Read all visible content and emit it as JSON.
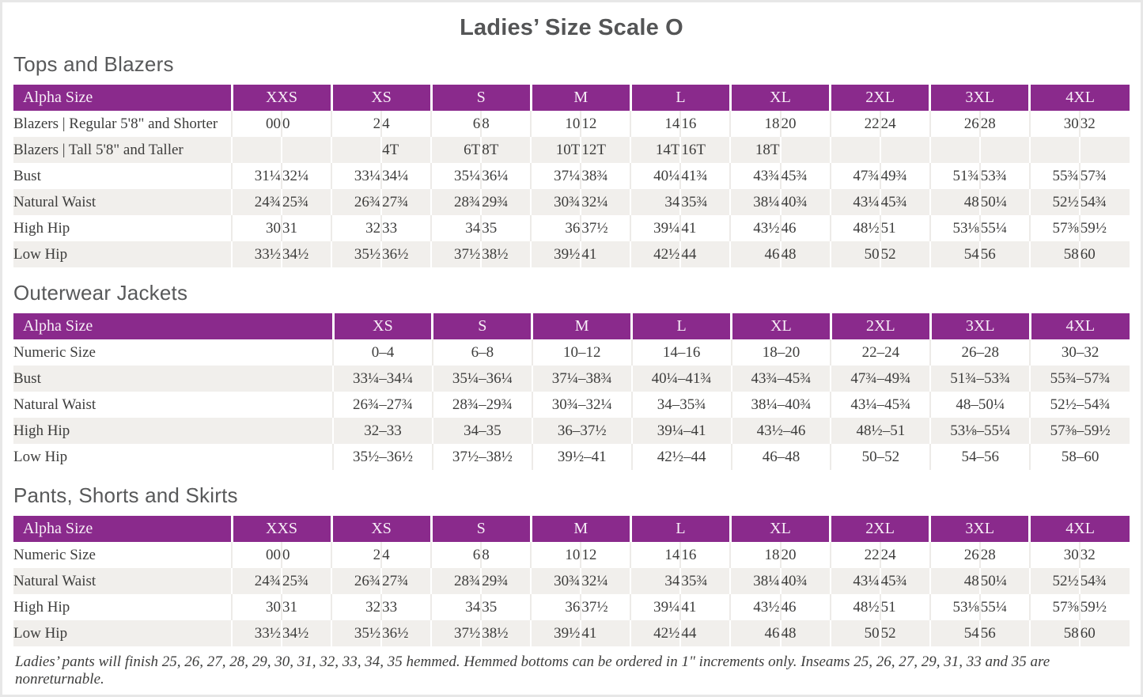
{
  "page": {
    "title": "Ladies’ Size Scale O",
    "footnote": "Ladies’ pants will finish 25, 26, 27, 28, 29, 30, 31, 32, 33, 34, 35 hemmed. Hemmed bottoms can be ordered in 1\" increments only. Inseams 25, 26, 27, 29, 31, 33 and 35 are nonreturnable.",
    "accent_color": "#8a2a8c",
    "stripe_color": "#f1efec"
  },
  "tables": [
    {
      "name": "tops-and-blazers",
      "section_title": "Tops and Blazers",
      "header_label": "Alpha Size",
      "columns_per_group": 2,
      "groups": [
        "XXS",
        "XS",
        "S",
        "M",
        "L",
        "XL",
        "2XL",
        "3XL",
        "4XL"
      ],
      "rows": [
        {
          "label": "Blazers | Regular 5'8\" and Shorter",
          "values": [
            "00",
            "0",
            "2",
            "4",
            "6",
            "8",
            "10",
            "12",
            "14",
            "16",
            "18",
            "20",
            "22",
            "24",
            "26",
            "28",
            "30",
            "32"
          ]
        },
        {
          "label": "Blazers | Tall 5'8\" and Taller",
          "values": [
            "",
            "",
            "",
            "4T",
            "6T",
            "8T",
            "10T",
            "12T",
            "14T",
            "16T",
            "18T",
            "",
            "",
            "",
            "",
            "",
            "",
            ""
          ]
        },
        {
          "label": "Bust",
          "values": [
            "31¼",
            "32¼",
            "33¼",
            "34¼",
            "35¼",
            "36¼",
            "37¼",
            "38¾",
            "40¼",
            "41¾",
            "43¾",
            "45¾",
            "47¾",
            "49¾",
            "51¾",
            "53¾",
            "55¾",
            "57¾"
          ]
        },
        {
          "label": "Natural Waist",
          "values": [
            "24¾",
            "25¾",
            "26¾",
            "27¾",
            "28¾",
            "29¾",
            "30¾",
            "32¼",
            "34",
            "35¾",
            "38¼",
            "40¾",
            "43¼",
            "45¾",
            "48",
            "50¼",
            "52½",
            "54¾"
          ]
        },
        {
          "label": "High Hip",
          "values": [
            "30",
            "31",
            "32",
            "33",
            "34",
            "35",
            "36",
            "37½",
            "39¼",
            "41",
            "43½",
            "46",
            "48½",
            "51",
            "53⅛",
            "55¼",
            "57⅜",
            "59½"
          ]
        },
        {
          "label": "Low Hip",
          "values": [
            "33½",
            "34½",
            "35½",
            "36½",
            "37½",
            "38½",
            "39½",
            "41",
            "42½",
            "44",
            "46",
            "48",
            "50",
            "52",
            "54",
            "56",
            "58",
            "60"
          ]
        }
      ]
    },
    {
      "name": "outerwear-jackets",
      "section_title": "Outerwear Jackets",
      "header_label": "Alpha Size",
      "columns_per_group": 1,
      "groups": [
        "XS",
        "S",
        "M",
        "L",
        "XL",
        "2XL",
        "3XL",
        "4XL"
      ],
      "rows": [
        {
          "label": "Numeric Size",
          "values": [
            "0–4",
            "6–8",
            "10–12",
            "14–16",
            "18–20",
            "22–24",
            "26–28",
            "30–32"
          ]
        },
        {
          "label": "Bust",
          "values": [
            "33¼–34¼",
            "35¼–36¼",
            "37¼–38¾",
            "40¼–41¾",
            "43¾–45¾",
            "47¾–49¾",
            "51¾–53¾",
            "55¾–57¾"
          ]
        },
        {
          "label": "Natural Waist",
          "values": [
            "26¾–27¾",
            "28¾–29¾",
            "30¾–32¼",
            "34–35¾",
            "38¼–40¾",
            "43¼–45¾",
            "48–50¼",
            "52½–54¾"
          ]
        },
        {
          "label": "High Hip",
          "values": [
            "32–33",
            "34–35",
            "36–37½",
            "39¼–41",
            "43½–46",
            "48½–51",
            "53⅛–55¼",
            "57⅜–59½"
          ]
        },
        {
          "label": "Low Hip",
          "values": [
            "35½–36½",
            "37½–38½",
            "39½–41",
            "42½–44",
            "46–48",
            "50–52",
            "54–56",
            "58–60"
          ]
        }
      ]
    },
    {
      "name": "pants-shorts-and-skirts",
      "section_title": "Pants, Shorts and Skirts",
      "header_label": "Alpha Size",
      "columns_per_group": 2,
      "groups": [
        "XXS",
        "XS",
        "S",
        "M",
        "L",
        "XL",
        "2XL",
        "3XL",
        "4XL"
      ],
      "rows": [
        {
          "label": "Numeric Size",
          "values": [
            "00",
            "0",
            "2",
            "4",
            "6",
            "8",
            "10",
            "12",
            "14",
            "16",
            "18",
            "20",
            "22",
            "24",
            "26",
            "28",
            "30",
            "32"
          ]
        },
        {
          "label": "Natural Waist",
          "values": [
            "24¾",
            "25¾",
            "26¾",
            "27¾",
            "28¾",
            "29¾",
            "30¾",
            "32¼",
            "34",
            "35¾",
            "38¼",
            "40¾",
            "43¼",
            "45¾",
            "48",
            "50¼",
            "52½",
            "54¾"
          ]
        },
        {
          "label": "High Hip",
          "values": [
            "30",
            "31",
            "32",
            "33",
            "34",
            "35",
            "36",
            "37½",
            "39¼",
            "41",
            "43½",
            "46",
            "48½",
            "51",
            "53⅛",
            "55¼",
            "57⅜",
            "59½"
          ]
        },
        {
          "label": "Low Hip",
          "values": [
            "33½",
            "34½",
            "35½",
            "36½",
            "37½",
            "38½",
            "39½",
            "41",
            "42½",
            "44",
            "46",
            "48",
            "50",
            "52",
            "54",
            "56",
            "58",
            "60"
          ]
        }
      ]
    }
  ]
}
